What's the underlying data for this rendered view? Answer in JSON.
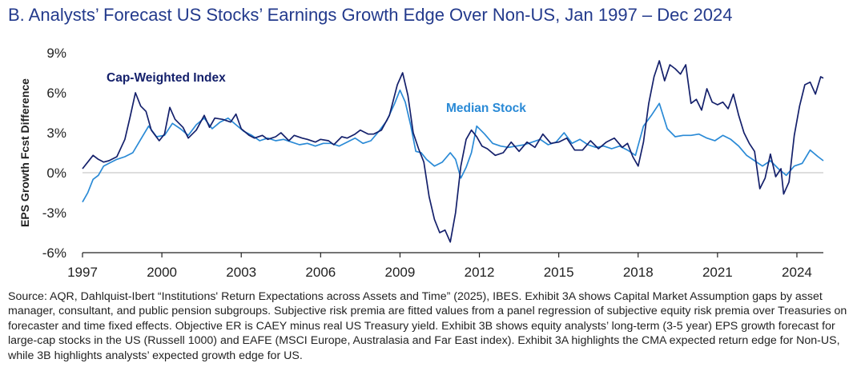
{
  "title": "B. Analysts’ Forecast US Stocks’ Earnings Growth Edge Over Non-US, Jan 1997 – Dec 2024",
  "source": "Source: AQR, Dahlquist-Ibert “Institutions' Return Expectations across Assets and Time” (2025), IBES. Exhibit 3A shows Capital Market Assumption gaps by asset manager, consultant, and public pension subgroups. Subjective risk premia are fitted values from a panel regression of subjective equity risk premia over Treasuries on forecaster and time fixed effects. Objective ER is CAEY minus real US Treasury yield. Exhibit 3B shows equity analysts’ long-term (3-5 year) EPS growth forecast for large-cap stocks in the US (Russell 1000) and EAFE (MSCI Europe, Australasia and Far East index). Exhibit 3A highlights the CMA expected return edge for Non-US, while 3B highlights analysts’ expected growth edge for US.",
  "colors": {
    "cap": "#14206b",
    "median": "#2a8ad6",
    "title": "#233a8c",
    "axis": "#222222",
    "zero": "#bbbbbb"
  },
  "chart_data": {
    "type": "line",
    "title": "B. Analysts’ Forecast US Stocks’ Earnings Growth Edge Over Non-US, Jan 1997 – Dec 2024",
    "xlabel": "",
    "ylabel": "EPS Growth Fcst Difference",
    "xlim": [
      1997,
      2025
    ],
    "ylim": [
      -6,
      9
    ],
    "xticks": [
      1997,
      2000,
      2003,
      2006,
      2009,
      2012,
      2015,
      2018,
      2021,
      2024
    ],
    "xtick_labels": [
      "1997",
      "2000",
      "2003",
      "2006",
      "2009",
      "2012",
      "2015",
      "2018",
      "2021",
      "2024"
    ],
    "yticks": [
      -6,
      -3,
      0,
      3,
      6,
      9
    ],
    "ytick_labels": [
      "-6%",
      "-3%",
      "0%",
      "3%",
      "6%",
      "9%"
    ],
    "grid": false,
    "series": [
      {
        "name": "Cap-Weighted Index",
        "label": "Cap-Weighted Index",
        "x": [
          1997.0,
          1997.2,
          1997.4,
          1997.6,
          1997.8,
          1998.0,
          1998.3,
          1998.6,
          1998.8,
          1999.0,
          1999.2,
          1999.4,
          1999.6,
          1999.9,
          2000.1,
          2000.3,
          2000.5,
          2000.8,
          2001.0,
          2001.3,
          2001.6,
          2001.8,
          2002.0,
          2002.3,
          2002.6,
          2002.8,
          2003.0,
          2003.3,
          2003.5,
          2003.8,
          2004.0,
          2004.3,
          2004.5,
          2004.8,
          2005.0,
          2005.3,
          2005.5,
          2005.8,
          2006.0,
          2006.3,
          2006.5,
          2006.8,
          2007.0,
          2007.3,
          2007.5,
          2007.8,
          2008.0,
          2008.3,
          2008.6,
          2008.9,
          2009.1,
          2009.3,
          2009.5,
          2009.7,
          2009.9,
          2010.1,
          2010.3,
          2010.5,
          2010.7,
          2010.9,
          2011.1,
          2011.3,
          2011.5,
          2011.7,
          2011.9,
          2012.1,
          2012.3,
          2012.6,
          2012.9,
          2013.2,
          2013.5,
          2013.8,
          2014.1,
          2014.4,
          2014.7,
          2015.0,
          2015.3,
          2015.6,
          2015.9,
          2016.2,
          2016.5,
          2016.8,
          2017.1,
          2017.4,
          2017.6,
          2017.8,
          2018.0,
          2018.2,
          2018.4,
          2018.6,
          2018.8,
          2019.0,
          2019.2,
          2019.4,
          2019.6,
          2019.8,
          2020.0,
          2020.2,
          2020.4,
          2020.6,
          2020.8,
          2021.0,
          2021.2,
          2021.4,
          2021.6,
          2021.8,
          2022.0,
          2022.2,
          2022.4,
          2022.6,
          2022.8,
          2023.0,
          2023.2,
          2023.4,
          2023.5,
          2023.7,
          2023.9,
          2024.1,
          2024.3,
          2024.5,
          2024.7,
          2024.9,
          2025.0
        ],
        "values": [
          0.3,
          0.8,
          1.3,
          1.0,
          0.8,
          0.9,
          1.2,
          2.5,
          4.2,
          6.0,
          5.0,
          4.6,
          3.2,
          2.4,
          2.9,
          4.9,
          4.0,
          3.4,
          2.6,
          3.2,
          4.3,
          3.4,
          4.1,
          4.0,
          3.8,
          4.4,
          3.3,
          2.8,
          2.6,
          2.8,
          2.5,
          2.7,
          3.0,
          2.4,
          2.8,
          2.6,
          2.5,
          2.3,
          2.5,
          2.4,
          2.1,
          2.7,
          2.6,
          2.9,
          3.2,
          2.9,
          2.9,
          3.2,
          4.3,
          6.6,
          7.5,
          5.8,
          3.0,
          1.8,
          0.8,
          -1.8,
          -3.5,
          -4.5,
          -4.3,
          -5.2,
          -3.0,
          0.5,
          2.5,
          3.2,
          2.7,
          2.0,
          1.8,
          1.3,
          1.5,
          2.3,
          1.6,
          2.3,
          1.9,
          2.9,
          2.2,
          2.3,
          2.6,
          1.7,
          1.7,
          2.4,
          1.8,
          2.3,
          2.6,
          1.9,
          2.2,
          1.2,
          0.5,
          2.3,
          5.2,
          7.2,
          8.4,
          6.9,
          8.1,
          7.8,
          7.4,
          8.1,
          5.2,
          5.5,
          4.7,
          6.3,
          5.3,
          5.1,
          5.3,
          4.8,
          5.9,
          4.3,
          3.0,
          2.2,
          1.6,
          -1.2,
          -0.4,
          1.4,
          -0.3,
          0.3,
          -1.6,
          -0.7,
          2.8,
          5.0,
          6.6,
          6.8,
          5.9,
          7.2,
          7.1
        ]
      },
      {
        "name": "Median Stock",
        "label": "Median Stock",
        "x": [
          1997.0,
          1997.2,
          1997.4,
          1997.6,
          1997.8,
          1998.0,
          1998.3,
          1998.6,
          1998.9,
          1999.2,
          1999.5,
          1999.8,
          2000.1,
          2000.4,
          2000.7,
          2001.0,
          2001.3,
          2001.6,
          2001.9,
          2002.2,
          2002.5,
          2002.8,
          2003.1,
          2003.4,
          2003.7,
          2004.0,
          2004.3,
          2004.6,
          2004.9,
          2005.2,
          2005.5,
          2005.8,
          2006.1,
          2006.4,
          2006.7,
          2007.0,
          2007.3,
          2007.6,
          2007.9,
          2008.2,
          2008.5,
          2008.8,
          2009.0,
          2009.2,
          2009.4,
          2009.6,
          2009.8,
          2010.0,
          2010.3,
          2010.6,
          2010.9,
          2011.1,
          2011.3,
          2011.5,
          2011.7,
          2011.9,
          2012.2,
          2012.5,
          2012.8,
          2013.1,
          2013.4,
          2013.7,
          2014.0,
          2014.3,
          2014.6,
          2014.9,
          2015.2,
          2015.5,
          2015.8,
          2016.1,
          2016.4,
          2016.7,
          2017.0,
          2017.3,
          2017.6,
          2017.9,
          2018.2,
          2018.5,
          2018.8,
          2019.1,
          2019.4,
          2019.7,
          2020.0,
          2020.3,
          2020.6,
          2020.9,
          2021.2,
          2021.5,
          2021.8,
          2022.1,
          2022.4,
          2022.7,
          2023.0,
          2023.3,
          2023.6,
          2023.9,
          2024.2,
          2024.5,
          2024.8,
          2025.0
        ],
        "values": [
          -2.2,
          -1.5,
          -0.5,
          -0.2,
          0.5,
          0.7,
          1.0,
          1.2,
          1.5,
          2.5,
          3.5,
          2.7,
          2.8,
          3.7,
          3.3,
          2.8,
          3.6,
          4.1,
          3.3,
          3.8,
          4.1,
          3.6,
          3.1,
          2.8,
          2.4,
          2.6,
          2.4,
          2.5,
          2.3,
          2.1,
          2.2,
          2.0,
          2.2,
          2.2,
          2.0,
          2.3,
          2.6,
          2.2,
          2.4,
          3.1,
          3.9,
          5.2,
          6.2,
          5.3,
          3.6,
          1.6,
          1.5,
          1.0,
          0.5,
          0.8,
          1.5,
          1.0,
          -0.4,
          0.4,
          1.5,
          3.5,
          2.9,
          2.2,
          2.0,
          1.9,
          2.0,
          2.1,
          2.3,
          2.5,
          2.1,
          2.3,
          3.0,
          2.2,
          2.5,
          2.1,
          1.9,
          2.0,
          1.8,
          2.0,
          1.7,
          1.3,
          3.5,
          4.3,
          5.2,
          3.3,
          2.7,
          2.8,
          2.8,
          2.9,
          2.6,
          2.4,
          2.8,
          2.5,
          2.0,
          1.3,
          0.9,
          0.5,
          0.9,
          0.3,
          -0.2,
          0.5,
          0.7,
          1.7,
          1.2,
          0.9
        ]
      }
    ]
  }
}
